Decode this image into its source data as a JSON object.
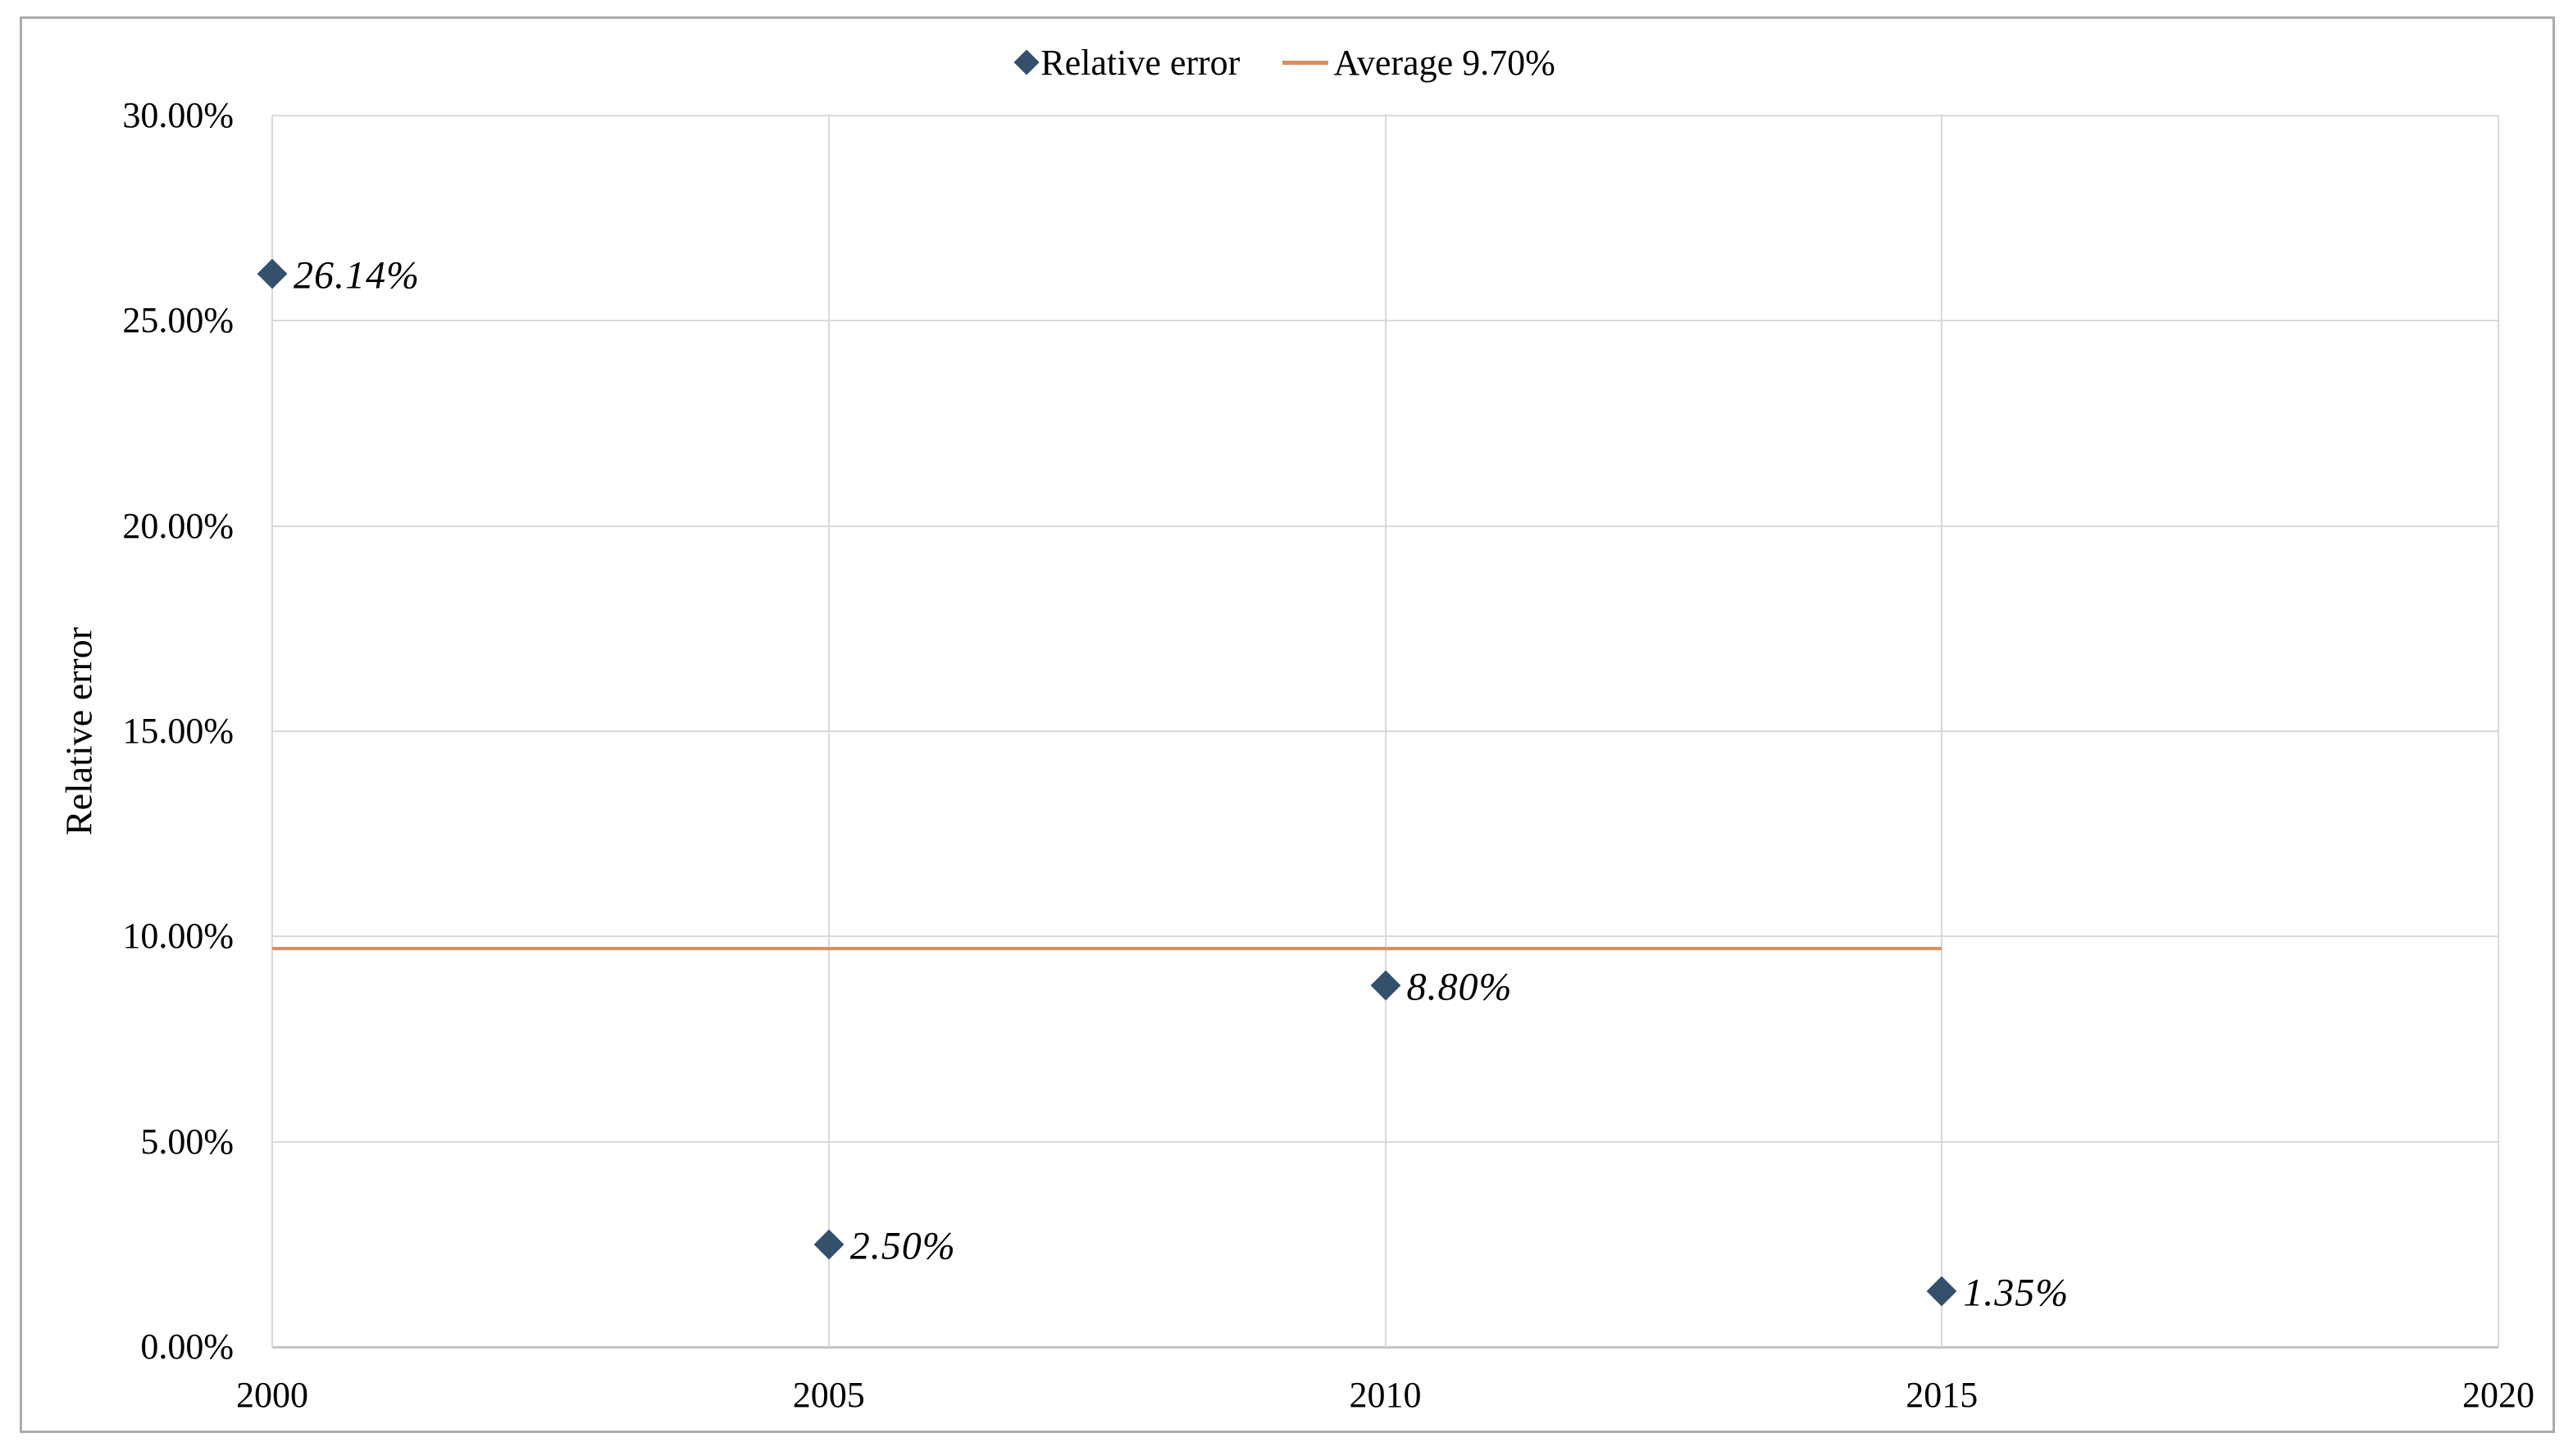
{
  "colors": {
    "marker": "#35506d",
    "average_line": "#dd8e60",
    "gridline": "#d9d9d9",
    "axis": "#c6c6c6",
    "frame_border": "#ababab",
    "text": "#000000"
  },
  "chart_data": {
    "type": "scatter",
    "title": "",
    "xlabel": "",
    "ylabel": "Relative error",
    "xlim": [
      2000,
      2020
    ],
    "ylim_pct": [
      0,
      30
    ],
    "grid": true,
    "legend_position": "top-center",
    "x_ticks": [
      {
        "value": 2000,
        "label": "2000"
      },
      {
        "value": 2005,
        "label": "2005"
      },
      {
        "value": 2010,
        "label": "2010"
      },
      {
        "value": 2015,
        "label": "2015"
      },
      {
        "value": 2020,
        "label": "2020"
      }
    ],
    "y_ticks": [
      {
        "value": 0,
        "label": "0.00%"
      },
      {
        "value": 5,
        "label": "5.00%"
      },
      {
        "value": 10,
        "label": "10.00%"
      },
      {
        "value": 15,
        "label": "15.00%"
      },
      {
        "value": 20,
        "label": "20.00%"
      },
      {
        "value": 25,
        "label": "25.00%"
      },
      {
        "value": 30,
        "label": "30.00%"
      }
    ],
    "series": [
      {
        "name": "Relative error",
        "kind": "points",
        "marker": "diamond",
        "color": "#35506d",
        "points": [
          {
            "x": 2000,
            "y_pct": 26.14,
            "label": "26.14%"
          },
          {
            "x": 2005,
            "y_pct": 2.5,
            "label": "2.50%"
          },
          {
            "x": 2010,
            "y_pct": 8.8,
            "label": "8.80%"
          },
          {
            "x": 2015,
            "y_pct": 1.35,
            "label": "1.35%"
          }
        ]
      },
      {
        "name": "Average 9.70%",
        "kind": "hline",
        "color": "#dd8e60",
        "y_pct": 9.7,
        "x_start": 2000,
        "x_end": 2015
      }
    ],
    "legend": [
      {
        "label": "Relative error",
        "marker": "diamond",
        "color": "#35506d"
      },
      {
        "label": "Average 9.70%",
        "marker": "line",
        "color": "#dd8e60"
      }
    ]
  }
}
